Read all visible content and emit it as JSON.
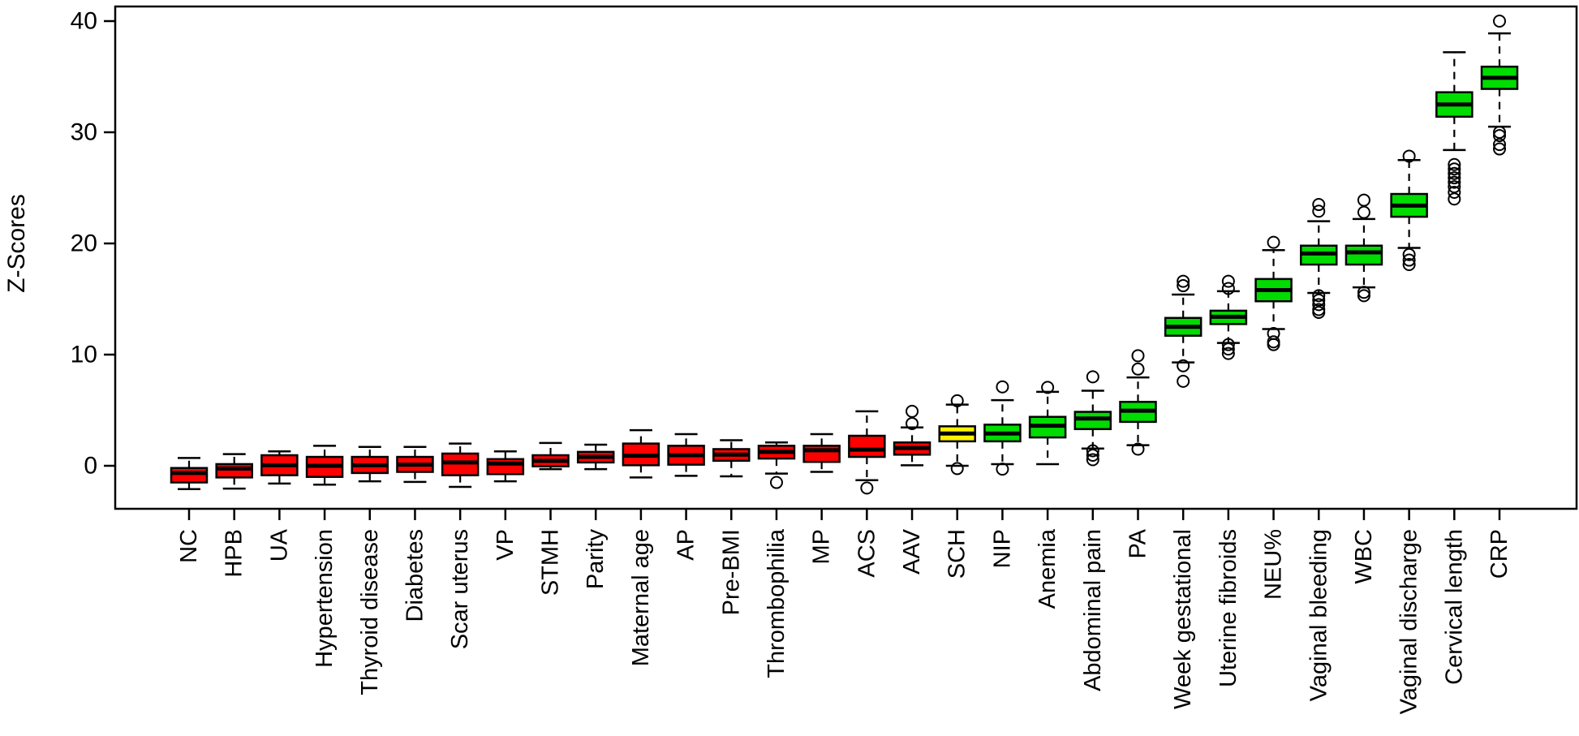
{
  "figure": {
    "background": "#FFFFFF"
  },
  "colors": {
    "red": "#FF0000",
    "yellow": "#FFF200",
    "green": "#00DC00",
    "axis": "#000000"
  },
  "chart_data": {
    "type": "box",
    "title": "",
    "xlabel": "",
    "ylabel": "Z-Scores",
    "ylim": [
      -3.9,
      41.3
    ],
    "yticks": [
      0,
      10,
      20,
      30,
      40
    ],
    "grid": false,
    "legend": null,
    "orientation": "vertical",
    "groups": [
      {
        "label": "NC",
        "color": "red",
        "whisker_low": -2.1,
        "q1": -1.5,
        "median": -0.65,
        "q3": -0.2,
        "whisker_high": 0.7,
        "outliers_low": [],
        "outliers_high": []
      },
      {
        "label": "HPB",
        "color": "red",
        "whisker_low": -2.05,
        "q1": -1.05,
        "median": -0.25,
        "q3": 0.15,
        "whisker_high": 1.05,
        "outliers_low": [],
        "outliers_high": []
      },
      {
        "label": "UA",
        "color": "red",
        "whisker_low": -1.6,
        "q1": -0.85,
        "median": 0.05,
        "q3": 0.95,
        "whisker_high": 1.3,
        "outliers_low": [],
        "outliers_high": []
      },
      {
        "label": "Hypertension",
        "color": "red",
        "whisker_low": -1.7,
        "q1": -1.0,
        "median": 0.0,
        "q3": 0.8,
        "whisker_high": 1.8,
        "outliers_low": [],
        "outliers_high": []
      },
      {
        "label": "Thyroid disease",
        "color": "red",
        "whisker_low": -1.4,
        "q1": -0.65,
        "median": 0.05,
        "q3": 0.8,
        "whisker_high": 1.7,
        "outliers_low": [],
        "outliers_high": []
      },
      {
        "label": "Diabetes",
        "color": "red",
        "whisker_low": -1.45,
        "q1": -0.55,
        "median": 0.1,
        "q3": 0.8,
        "whisker_high": 1.7,
        "outliers_low": [],
        "outliers_high": []
      },
      {
        "label": "Scar uterus",
        "color": "red",
        "whisker_low": -1.9,
        "q1": -0.85,
        "median": 0.3,
        "q3": 1.1,
        "whisker_high": 2.0,
        "outliers_low": [],
        "outliers_high": []
      },
      {
        "label": "VP",
        "color": "red",
        "whisker_low": -1.4,
        "q1": -0.75,
        "median": 0.2,
        "q3": 0.6,
        "whisker_high": 1.3,
        "outliers_low": [],
        "outliers_high": []
      },
      {
        "label": "STMH",
        "color": "red",
        "whisker_low": -0.3,
        "q1": -0.05,
        "median": 0.45,
        "q3": 0.95,
        "whisker_high": 2.05,
        "outliers_low": [],
        "outliers_high": []
      },
      {
        "label": "Parity",
        "color": "red",
        "whisker_low": -0.3,
        "q1": 0.3,
        "median": 0.8,
        "q3": 1.25,
        "whisker_high": 1.9,
        "outliers_low": [],
        "outliers_high": []
      },
      {
        "label": "Maternal age",
        "color": "red",
        "whisker_low": -1.05,
        "q1": 0.05,
        "median": 0.9,
        "q3": 2.0,
        "whisker_high": 3.2,
        "outliers_low": [],
        "outliers_high": []
      },
      {
        "label": "AP",
        "color": "red",
        "whisker_low": -0.9,
        "q1": 0.1,
        "median": 0.95,
        "q3": 1.8,
        "whisker_high": 2.85,
        "outliers_low": [],
        "outliers_high": []
      },
      {
        "label": "Pre-BMI",
        "color": "red",
        "whisker_low": -0.95,
        "q1": 0.45,
        "median": 1.0,
        "q3": 1.5,
        "whisker_high": 2.3,
        "outliers_low": [],
        "outliers_high": []
      },
      {
        "label": "Thrombophilia",
        "color": "red",
        "whisker_low": -0.7,
        "q1": 0.65,
        "median": 1.25,
        "q3": 1.8,
        "whisker_high": 2.1,
        "outliers_low": [
          -1.5
        ],
        "outliers_high": []
      },
      {
        "label": "MP",
        "color": "red",
        "whisker_low": -0.55,
        "q1": 0.35,
        "median": 1.4,
        "q3": 1.8,
        "whisker_high": 2.85,
        "outliers_low": [],
        "outliers_high": []
      },
      {
        "label": "ACS",
        "color": "red",
        "whisker_low": -1.3,
        "q1": 0.8,
        "median": 1.45,
        "q3": 2.7,
        "whisker_high": 4.9,
        "outliers_low": [
          -2.0
        ],
        "outliers_high": []
      },
      {
        "label": "AAV",
        "color": "red",
        "whisker_low": 0.05,
        "q1": 1.0,
        "median": 1.6,
        "q3": 2.1,
        "whisker_high": 3.45,
        "outliers_low": [],
        "outliers_high": [
          3.8,
          4.9
        ]
      },
      {
        "label": "SCH",
        "color": "yellow",
        "whisker_low": 0.0,
        "q1": 2.2,
        "median": 2.9,
        "q3": 3.55,
        "whisker_high": 5.5,
        "outliers_low": [
          -0.25
        ],
        "outliers_high": [
          5.85
        ]
      },
      {
        "label": "NIP",
        "color": "green",
        "whisker_low": 0.15,
        "q1": 2.2,
        "median": 2.9,
        "q3": 3.7,
        "whisker_high": 5.9,
        "outliers_low": [
          -0.3
        ],
        "outliers_high": [
          7.1
        ]
      },
      {
        "label": "Anemia",
        "color": "green",
        "whisker_low": 0.15,
        "q1": 2.55,
        "median": 3.6,
        "q3": 4.4,
        "whisker_high": 6.65,
        "outliers_low": [],
        "outliers_high": [
          7.05
        ]
      },
      {
        "label": "Abdominal pain",
        "color": "green",
        "whisker_low": 1.55,
        "q1": 3.3,
        "median": 4.25,
        "q3": 4.85,
        "whisker_high": 6.75,
        "outliers_low": [
          1.35,
          0.95,
          0.55
        ],
        "outliers_high": [
          8.0
        ]
      },
      {
        "label": "PA",
        "color": "green",
        "whisker_low": 1.85,
        "q1": 3.95,
        "median": 4.95,
        "q3": 5.75,
        "whisker_high": 7.95,
        "outliers_low": [
          1.5
        ],
        "outliers_high": [
          8.7,
          9.9
        ]
      },
      {
        "label": "Week gestational",
        "color": "green",
        "whisker_low": 9.3,
        "q1": 11.7,
        "median": 12.5,
        "q3": 13.3,
        "whisker_high": 15.4,
        "outliers_low": [
          9.0,
          7.6
        ],
        "outliers_high": [
          16.2,
          16.6
        ]
      },
      {
        "label": "Uterine fibroids",
        "color": "green",
        "whisker_low": 11.05,
        "q1": 12.75,
        "median": 13.4,
        "q3": 13.95,
        "whisker_high": 15.7,
        "outliers_low": [
          10.9,
          10.5,
          10.1
        ],
        "outliers_high": [
          15.95,
          16.6
        ]
      },
      {
        "label": "NEU%",
        "color": "green",
        "whisker_low": 12.3,
        "q1": 14.8,
        "median": 15.8,
        "q3": 16.8,
        "whisker_high": 19.4,
        "outliers_low": [
          11.9,
          11.15,
          10.9
        ],
        "outliers_high": [
          20.1
        ]
      },
      {
        "label": "Vaginal bleeding",
        "color": "green",
        "whisker_low": 15.55,
        "q1": 18.1,
        "median": 19.1,
        "q3": 19.8,
        "whisker_high": 22.0,
        "outliers_low": [
          15.3,
          14.9,
          14.5,
          14.05,
          13.8
        ],
        "outliers_high": [
          22.9,
          23.5
        ]
      },
      {
        "label": "WBC",
        "color": "green",
        "whisker_low": 16.05,
        "q1": 18.1,
        "median": 19.2,
        "q3": 19.8,
        "whisker_high": 22.2,
        "outliers_low": [
          15.6,
          15.3
        ],
        "outliers_high": [
          22.8,
          23.9
        ]
      },
      {
        "label": "Vaginal discharge",
        "color": "green",
        "whisker_low": 19.6,
        "q1": 22.4,
        "median": 23.4,
        "q3": 24.45,
        "whisker_high": 27.5,
        "outliers_low": [
          19.0,
          18.5,
          18.1
        ],
        "outliers_high": [
          27.85
        ]
      },
      {
        "label": "Cervical length",
        "color": "green",
        "whisker_low": 28.4,
        "q1": 31.4,
        "median": 32.5,
        "q3": 33.6,
        "whisker_high": 37.2,
        "outliers_low": [
          27.1,
          26.7,
          26.3,
          25.9,
          25.5,
          25.1,
          24.6,
          24.0
        ],
        "outliers_high": []
      },
      {
        "label": "CRP",
        "color": "green",
        "whisker_low": 30.5,
        "q1": 33.9,
        "median": 34.9,
        "q3": 35.9,
        "whisker_high": 38.9,
        "outliers_low": [
          30.0,
          29.7,
          28.9,
          28.5
        ],
        "outliers_high": [
          40.0
        ]
      }
    ]
  }
}
